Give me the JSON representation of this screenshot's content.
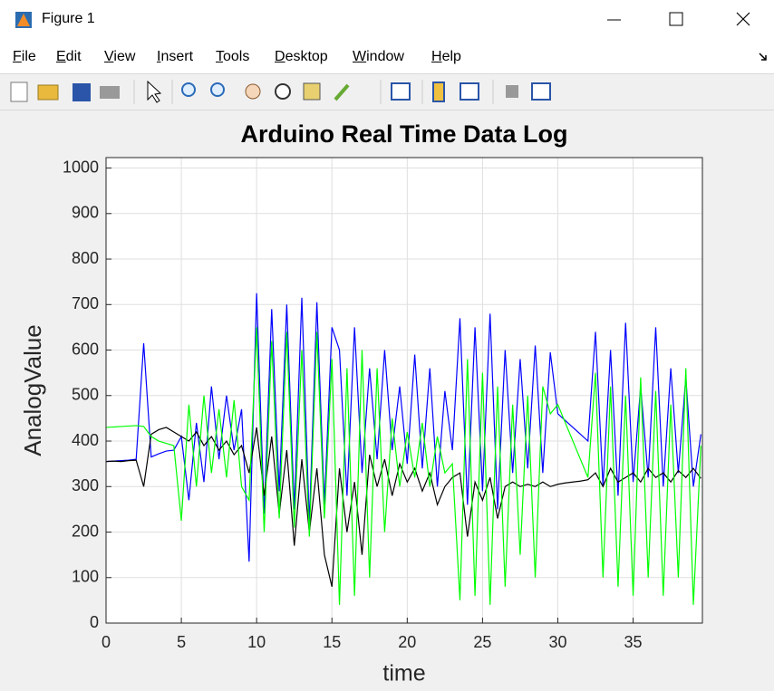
{
  "window": {
    "title": "Figure 1",
    "menu": [
      "File",
      "Edit",
      "View",
      "Insert",
      "Tools",
      "Desktop",
      "Window",
      "Help"
    ]
  },
  "chart_data": {
    "type": "line",
    "title": "Arduino Real Time Data Log",
    "x_label": "time",
    "y_label": "AnalogValue",
    "x": [
      0,
      0.5,
      1,
      1.5,
      2,
      2.5,
      3,
      3.5,
      4,
      4.5,
      5,
      5.5,
      6,
      6.5,
      7,
      7.5,
      8,
      8.5,
      9,
      9.5,
      10,
      10.5,
      11,
      11.5,
      12,
      12.5,
      13,
      13.5,
      14,
      14.5,
      15,
      15.5,
      16,
      16.5,
      17,
      17.5,
      18,
      18.5,
      19,
      19.5,
      20,
      20.5,
      21,
      21.5,
      22,
      22.5,
      23,
      23.5,
      24,
      24.5,
      25,
      25.5,
      26,
      26.5,
      27,
      27.5,
      28,
      28.5,
      29,
      29.5,
      30,
      30.5,
      31,
      31.5,
      32,
      32.5,
      33,
      33.5,
      34,
      34.5,
      35,
      35.5,
      36,
      36.5,
      37,
      37.5,
      38,
      38.5,
      39,
      39.5
    ],
    "series": [
      {
        "color": "#0000ff",
        "values": [
          355,
          356,
          357,
          358,
          360,
          615,
          365,
          372,
          378,
          380,
          410,
          270,
          440,
          310,
          520,
          360,
          500,
          380,
          470,
          135,
          725,
          240,
          690,
          290,
          700,
          250,
          715,
          220,
          705,
          260,
          650,
          600,
          280,
          650,
          330,
          560,
          360,
          600,
          380,
          520,
          350,
          590,
          340,
          560,
          300,
          510,
          380,
          670,
          260,
          650,
          290,
          680,
          250,
          600,
          330,
          580,
          340,
          610,
          330,
          595,
          460,
          445,
          430,
          415,
          400,
          640,
          300,
          600,
          280,
          660,
          310,
          520,
          320,
          650,
          300,
          560,
          330,
          540,
          300,
          415
        ]
      },
      {
        "color": "#000000",
        "values": [
          355,
          356,
          355,
          357,
          358,
          300,
          415,
          425,
          430,
          420,
          410,
          400,
          420,
          390,
          410,
          380,
          400,
          370,
          390,
          330,
          430,
          280,
          410,
          240,
          380,
          170,
          360,
          200,
          340,
          150,
          80,
          340,
          200,
          310,
          150,
          370,
          300,
          360,
          280,
          350,
          310,
          340,
          290,
          330,
          260,
          300,
          320,
          330,
          190,
          310,
          270,
          320,
          230,
          300,
          310,
          300,
          305,
          300,
          310,
          300,
          305,
          308,
          310,
          312,
          315,
          330,
          300,
          340,
          310,
          320,
          330,
          310,
          340,
          320,
          330,
          310,
          335,
          320,
          340,
          318
        ]
      },
      {
        "color": "#00ff00",
        "values": [
          430,
          431,
          432,
          433,
          434,
          432,
          410,
          400,
          395,
          390,
          225,
          480,
          300,
          500,
          330,
          470,
          320,
          490,
          300,
          270,
          650,
          200,
          620,
          230,
          640,
          210,
          600,
          190,
          640,
          230,
          580,
          40,
          560,
          60,
          600,
          100,
          560,
          200,
          450,
          300,
          420,
          320,
          440,
          300,
          410,
          330,
          350,
          50,
          580,
          60,
          550,
          40,
          520,
          80,
          480,
          150,
          500,
          100,
          520,
          460,
          480,
          440,
          400,
          360,
          320,
          550,
          100,
          520,
          80,
          500,
          60,
          540,
          100,
          510,
          60,
          480,
          100,
          560,
          40,
          390
        ]
      }
    ],
    "xlim": [
      0,
      39.6
    ],
    "ylim": [
      0,
      1023
    ],
    "xticks": [
      0,
      5,
      10,
      15,
      20,
      25,
      30,
      35
    ],
    "yticks": [
      0,
      100,
      200,
      300,
      400,
      500,
      600,
      700,
      800,
      900,
      1000
    ],
    "grid": true
  }
}
